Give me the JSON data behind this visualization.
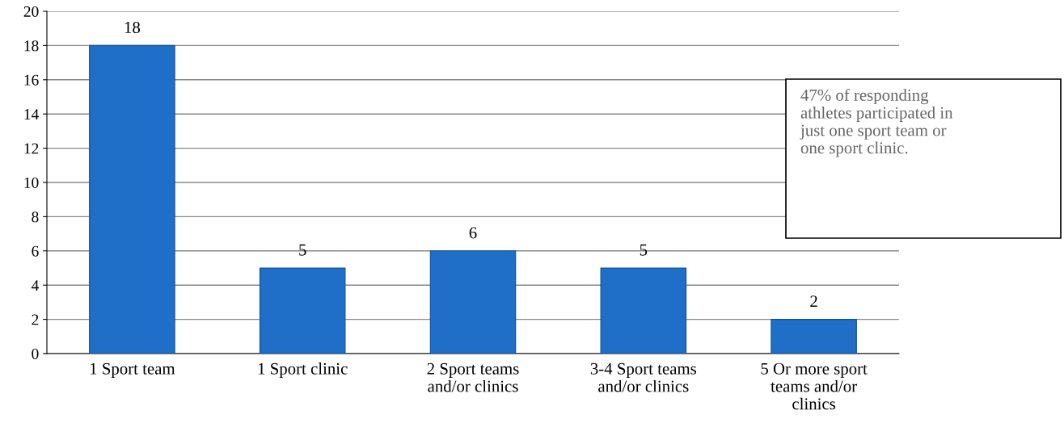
{
  "chart_data": {
    "type": "bar",
    "categories": [
      "1 Sport team",
      "1 Sport clinic",
      "2 Sport teams and/or clinics",
      "3-4 Sport teams and/or clinics",
      "5 Or more sport teams and/or clinics"
    ],
    "values": [
      18,
      5,
      6,
      5,
      2
    ],
    "color": "#1f6fc8",
    "ylim": [
      0,
      20
    ],
    "yticks": [
      0,
      2,
      4,
      6,
      8,
      10,
      12,
      14,
      16,
      18,
      20
    ],
    "grid": "y",
    "data_labels": true,
    "annotations": [
      "47% of responding athletes participated in just one sport team or one sport clinic."
    ]
  }
}
